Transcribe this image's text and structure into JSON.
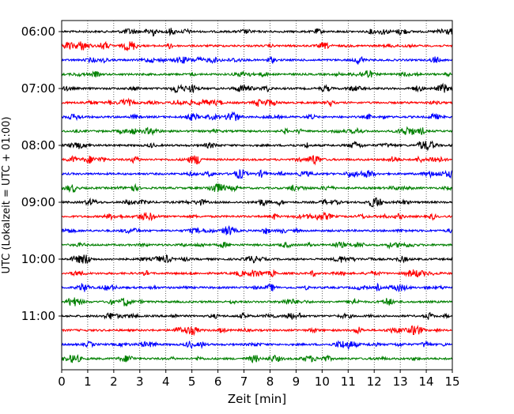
{
  "chart_data": {
    "type": "line",
    "xlabel": "Zeit  [min]",
    "ylabel": "UTC (Lokalzeit = UTC + 01:00)",
    "xlim": [
      0,
      15
    ],
    "x_ticks": [
      "0",
      "1",
      "2",
      "3",
      "4",
      "5",
      "6",
      "7",
      "8",
      "9",
      "10",
      "11",
      "12",
      "13",
      "14",
      "15"
    ],
    "y_ticks": [
      "06:00",
      "07:00",
      "08:00",
      "09:00",
      "10:00",
      "11:00"
    ],
    "minutes_per_trace": 15,
    "grid_x": true,
    "trace_colors": [
      "#000000",
      "#ff0000",
      "#0000ff",
      "#008000"
    ],
    "series": [
      {
        "start": "06:00",
        "color": "#000000"
      },
      {
        "start": "06:15",
        "color": "#ff0000"
      },
      {
        "start": "06:30",
        "color": "#0000ff"
      },
      {
        "start": "06:45",
        "color": "#008000"
      },
      {
        "start": "07:00",
        "color": "#000000"
      },
      {
        "start": "07:15",
        "color": "#ff0000"
      },
      {
        "start": "07:30",
        "color": "#0000ff"
      },
      {
        "start": "07:45",
        "color": "#008000"
      },
      {
        "start": "08:00",
        "color": "#000000"
      },
      {
        "start": "08:15",
        "color": "#ff0000"
      },
      {
        "start": "08:30",
        "color": "#0000ff"
      },
      {
        "start": "08:45",
        "color": "#008000"
      },
      {
        "start": "09:00",
        "color": "#000000"
      },
      {
        "start": "09:15",
        "color": "#ff0000"
      },
      {
        "start": "09:30",
        "color": "#0000ff"
      },
      {
        "start": "09:45",
        "color": "#008000"
      },
      {
        "start": "10:00",
        "color": "#000000"
      },
      {
        "start": "10:15",
        "color": "#ff0000"
      },
      {
        "start": "10:30",
        "color": "#0000ff"
      },
      {
        "start": "10:45",
        "color": "#008000"
      },
      {
        "start": "11:00",
        "color": "#000000"
      },
      {
        "start": "11:15",
        "color": "#ff0000"
      },
      {
        "start": "11:30",
        "color": "#0000ff"
      },
      {
        "start": "11:45",
        "color": "#008000"
      }
    ]
  }
}
